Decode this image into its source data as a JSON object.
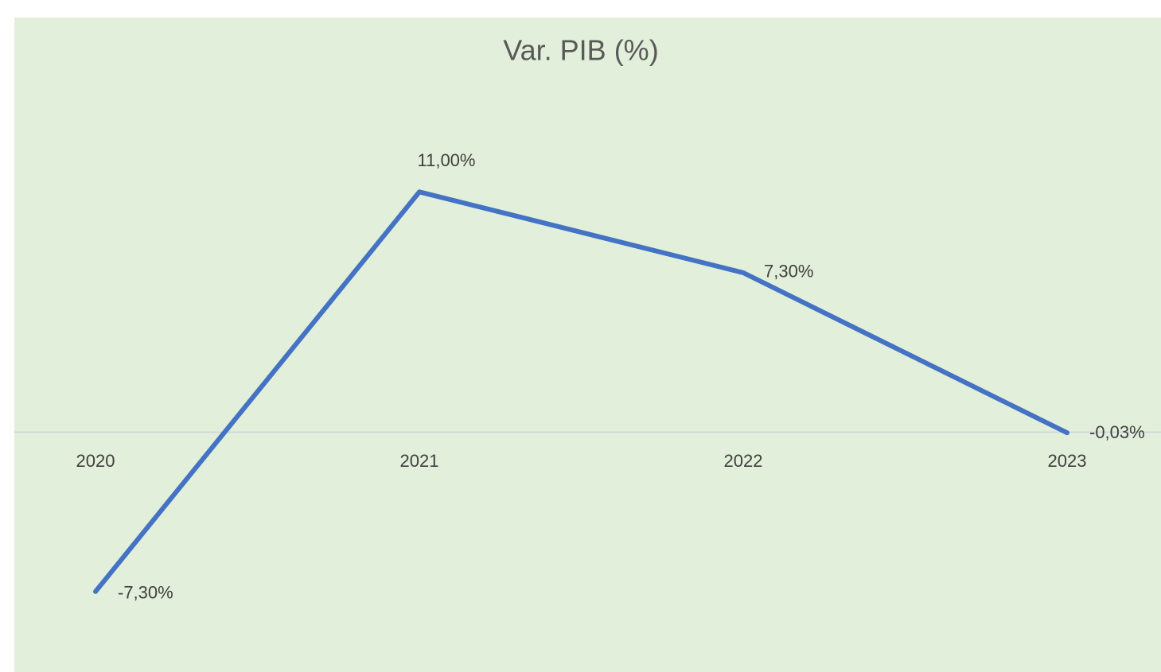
{
  "chart_data": {
    "type": "line",
    "title": "Var. PIB (%)",
    "categories": [
      "2020",
      "2021",
      "2022",
      "2023"
    ],
    "values": [
      -7.3,
      11,
      7.3,
      -0.03
    ],
    "value_labels": [
      "-7,30%",
      "11,00%",
      "7,30%",
      "-0,03%"
    ],
    "color": "#4472c4",
    "ylim": [
      -10,
      16
    ]
  }
}
